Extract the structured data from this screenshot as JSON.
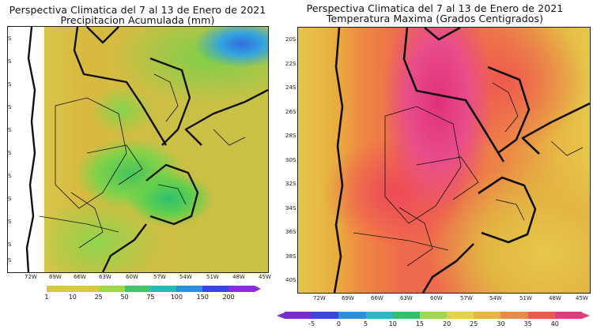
{
  "left_map": {
    "title_line1": "Perspectiva Climatica del 7 al 13 de Enero de 2021",
    "title_line2": "Precipitacion Acumulada (mm)",
    "lon_ticks": [
      "72W",
      "69W",
      "66W",
      "63W",
      "60W",
      "57W",
      "54W",
      "51W",
      "48W",
      "45W"
    ],
    "lat_ticks": [
      "S",
      "S",
      "S",
      "S",
      "S",
      "S",
      "S",
      "S",
      "S",
      "S",
      "S"
    ],
    "legend": {
      "labels": [
        "1",
        "10",
        "25",
        "50",
        "75",
        "100",
        "150",
        "200"
      ],
      "colors": [
        "#ffffff",
        "#d8c84a",
        "#d8c84a",
        "#9fd84a",
        "#44c468",
        "#2fb7b7",
        "#2b8fe0",
        "#3a45dc",
        "#8a2fd8"
      ]
    }
  },
  "right_map": {
    "title_line1": "Perspectiva Climatica del 7 al 13 de Enero de 2021",
    "title_line2": "Temperatura Maxima (Grados Centigrados)",
    "lon_ticks": [
      "72W",
      "69W",
      "66W",
      "63W",
      "60W",
      "57W",
      "54W",
      "51W",
      "48W",
      "45W"
    ],
    "lat_ticks": [
      "20S",
      "22S",
      "24S",
      "26S",
      "28S",
      "30S",
      "32S",
      "34S",
      "36S",
      "38S",
      "40S"
    ],
    "legend": {
      "labels": [
        "-5",
        "0",
        "5",
        "10",
        "15",
        "20",
        "25",
        "30",
        "35",
        "40"
      ],
      "colors": [
        "#7a2bd0",
        "#3a45dc",
        "#2b8fe0",
        "#2fb7c7",
        "#2fc06a",
        "#9fd84a",
        "#e6d24a",
        "#e8b440",
        "#ec8a44",
        "#ee5a4a",
        "#e23d7a"
      ]
    }
  }
}
